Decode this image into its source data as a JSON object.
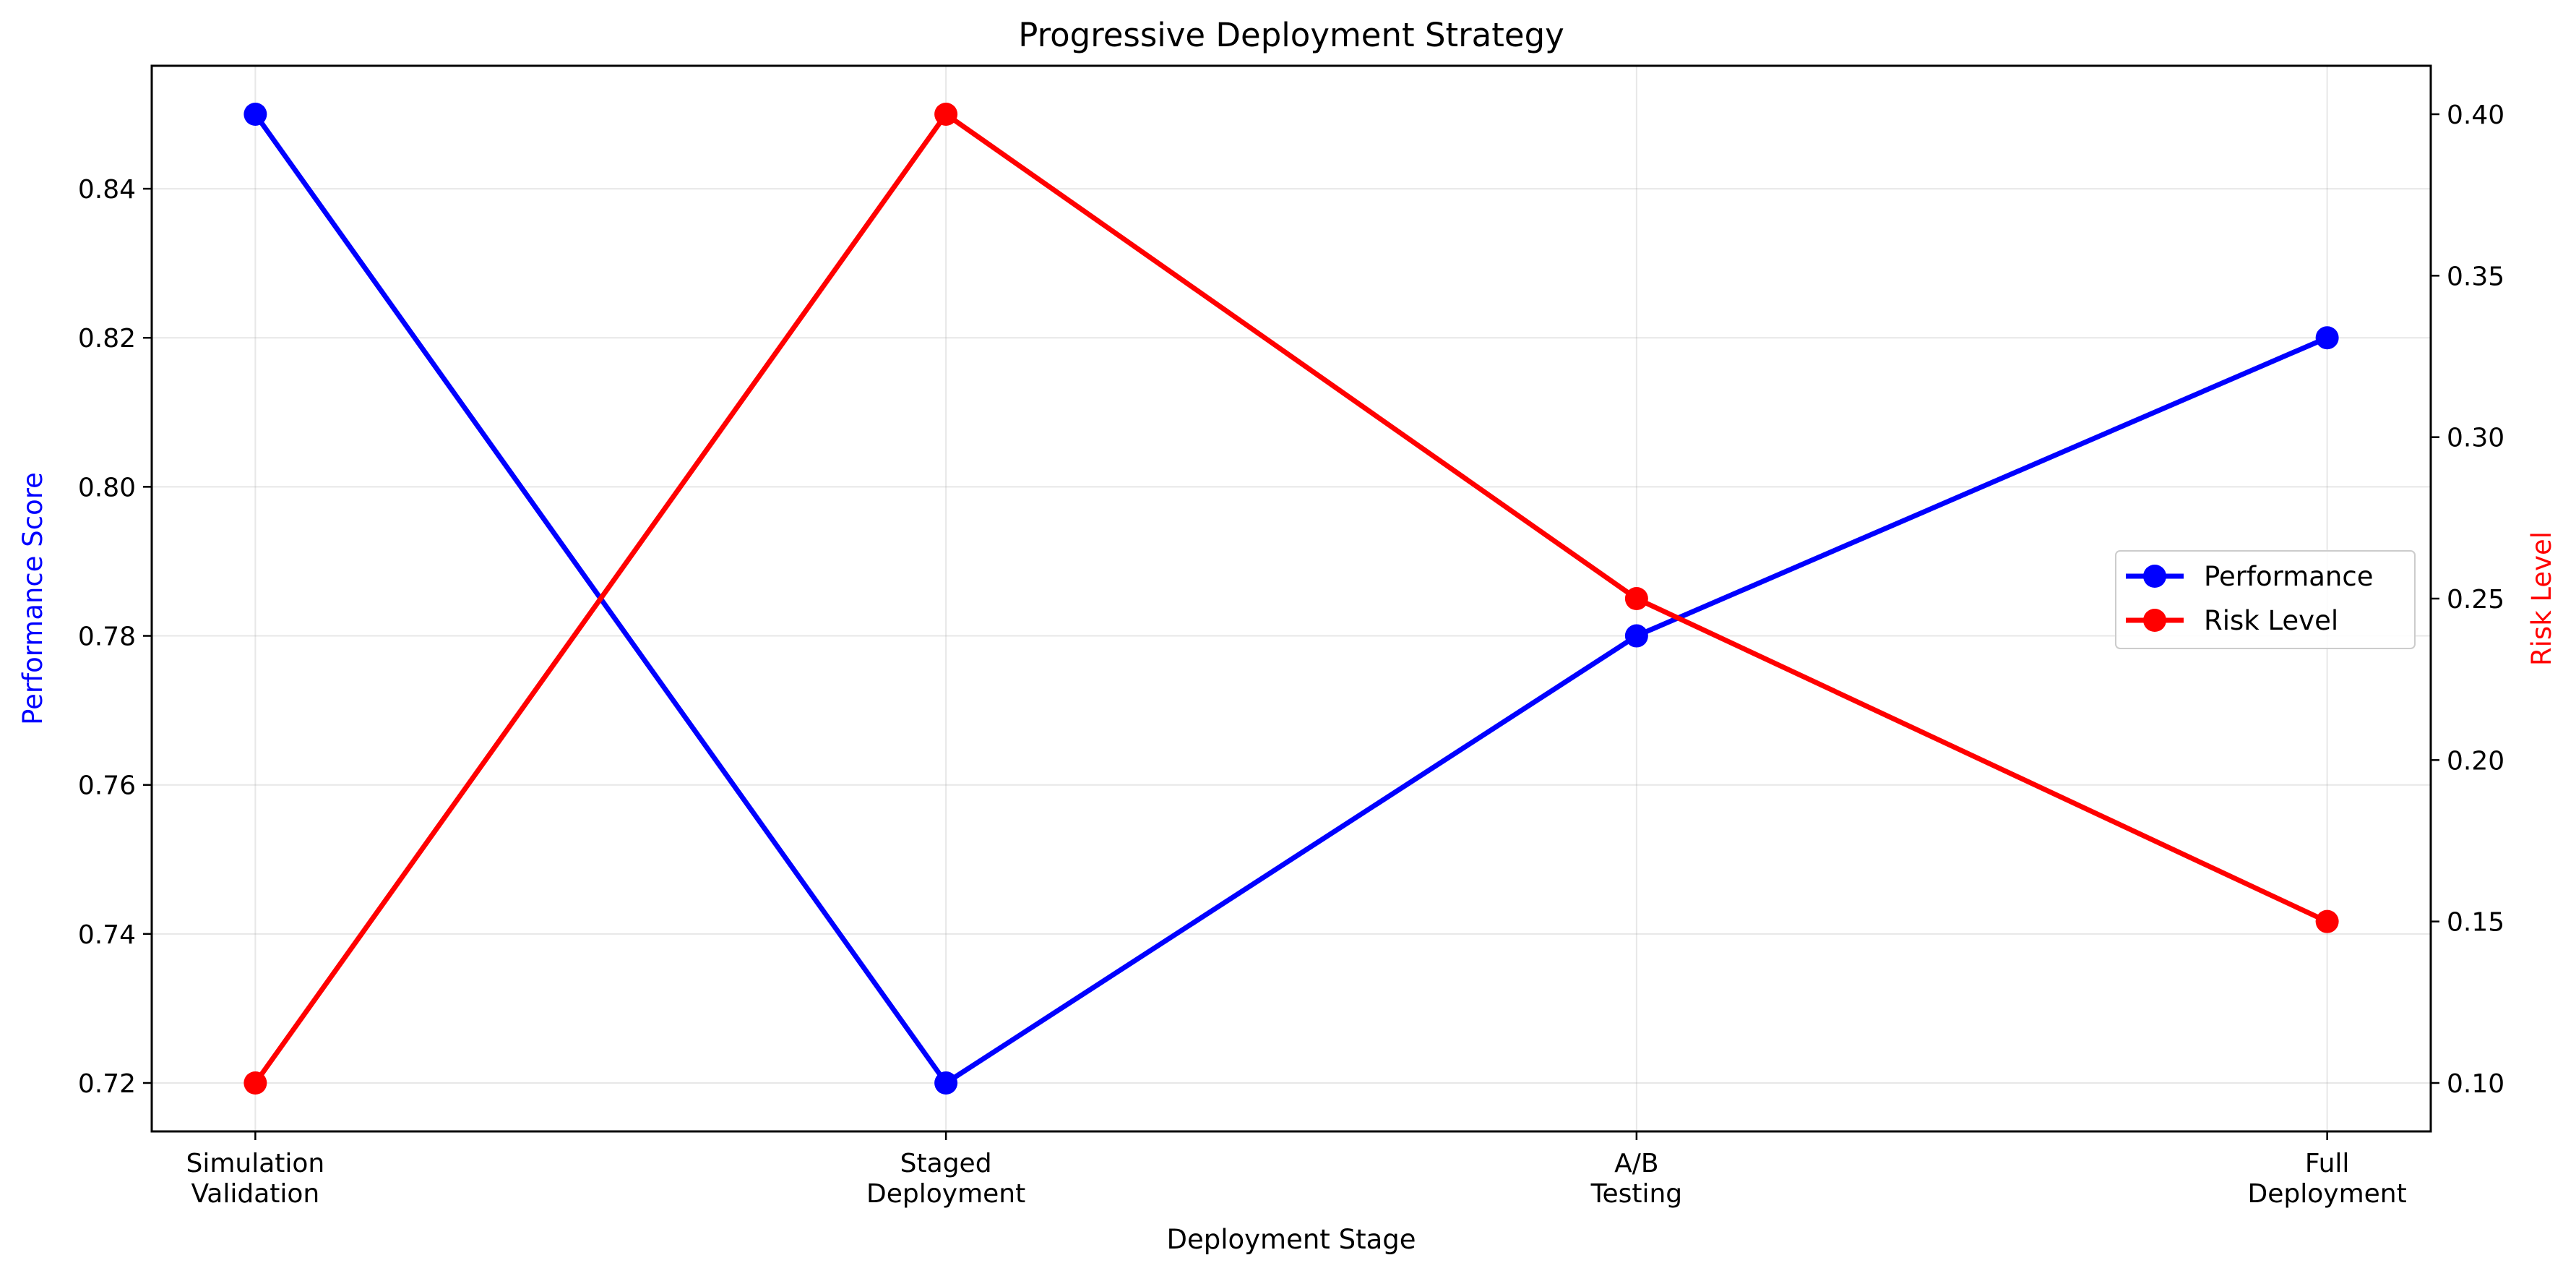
{
  "chart_data": {
    "type": "line",
    "title": "Progressive Deployment Strategy",
    "xlabel": "Deployment Stage",
    "ylabel_left": "Performance Score",
    "ylabel_right": "Risk Level",
    "categories": [
      [
        "Simulation",
        "Validation"
      ],
      [
        "Staged",
        "Deployment"
      ],
      [
        "A/B",
        "Testing"
      ],
      [
        "Full",
        "Deployment"
      ]
    ],
    "y_left": {
      "lim": [
        0.7135,
        0.8565
      ],
      "ticks": [
        "0.72",
        "0.74",
        "0.76",
        "0.78",
        "0.80",
        "0.82",
        "0.84"
      ],
      "tick_values": [
        0.72,
        0.74,
        0.76,
        0.78,
        0.8,
        0.82,
        0.84
      ]
    },
    "y_right": {
      "lim": [
        0.085,
        0.415
      ],
      "ticks": [
        "0.10",
        "0.15",
        "0.20",
        "0.25",
        "0.30",
        "0.35",
        "0.40"
      ],
      "tick_values": [
        0.1,
        0.15,
        0.2,
        0.25,
        0.3,
        0.35,
        0.4
      ]
    },
    "grid": true,
    "legend_placement": "center-right",
    "series": [
      {
        "name": "Performance",
        "axis": "left",
        "color": "#0000ff",
        "values": [
          0.85,
          0.72,
          0.78,
          0.82
        ]
      },
      {
        "name": "Risk Level",
        "axis": "right",
        "color": "#ff0000",
        "values": [
          0.1,
          0.4,
          0.25,
          0.15
        ]
      }
    ]
  }
}
